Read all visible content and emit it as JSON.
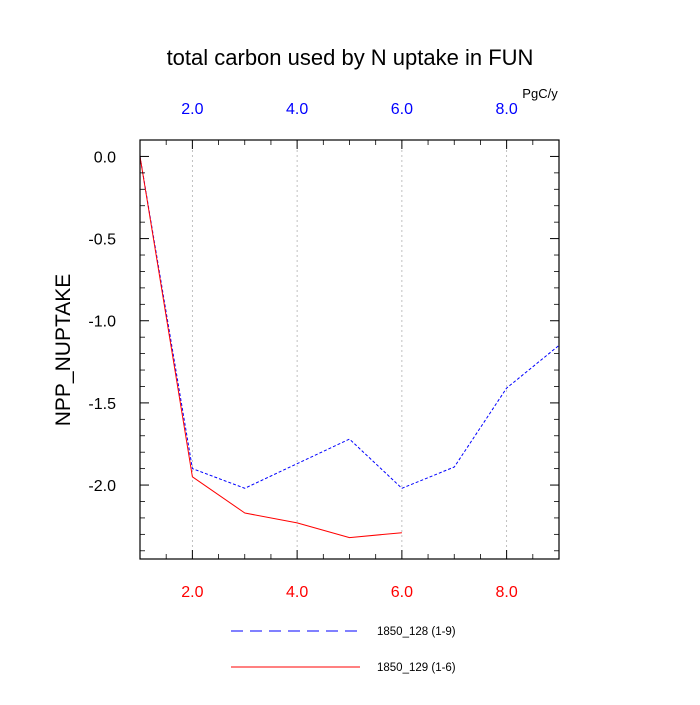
{
  "chart_data": {
    "type": "line",
    "title": "total carbon used by N uptake in FUN",
    "ylabel": "NPP_NUPTAKE",
    "xlabel": "",
    "unit_label": "PgC/y",
    "xlim": [
      1,
      9
    ],
    "ylim": [
      -2.45,
      0.1
    ],
    "x_ticks": [
      2,
      4,
      6,
      8
    ],
    "x_tick_labels_bottom": [
      "2.0",
      "4.0",
      "6.0",
      "8.0"
    ],
    "x_tick_labels_top": [
      "2.0",
      "4.0",
      "6.0",
      "8.0"
    ],
    "y_ticks": [
      0,
      -0.5,
      -1.0,
      -1.5,
      -2.0
    ],
    "y_tick_labels": [
      "0.0",
      "-0.5",
      "-1.0",
      "-1.5",
      "-2.0"
    ],
    "vertical_gridlines": true,
    "legend_position": "bottom",
    "colors": {
      "bottom_axis": "#ff0000",
      "top_axis": "#0000ff"
    },
    "series": [
      {
        "name": "1850_128 (1-9)",
        "color": "#0000ff",
        "style": "dashed",
        "x": [
          1,
          2,
          3,
          4,
          5,
          6,
          7,
          8,
          9
        ],
        "values": [
          0.0,
          -1.9,
          -2.02,
          -1.87,
          -1.72,
          -2.02,
          -1.89,
          -1.41,
          -1.15
        ]
      },
      {
        "name": "1850_129 (1-6)",
        "color": "#ff0000",
        "style": "solid",
        "x": [
          1,
          2,
          3,
          4,
          5,
          6
        ],
        "values": [
          0.0,
          -1.95,
          -2.17,
          -2.23,
          -2.32,
          -2.29
        ]
      }
    ]
  }
}
